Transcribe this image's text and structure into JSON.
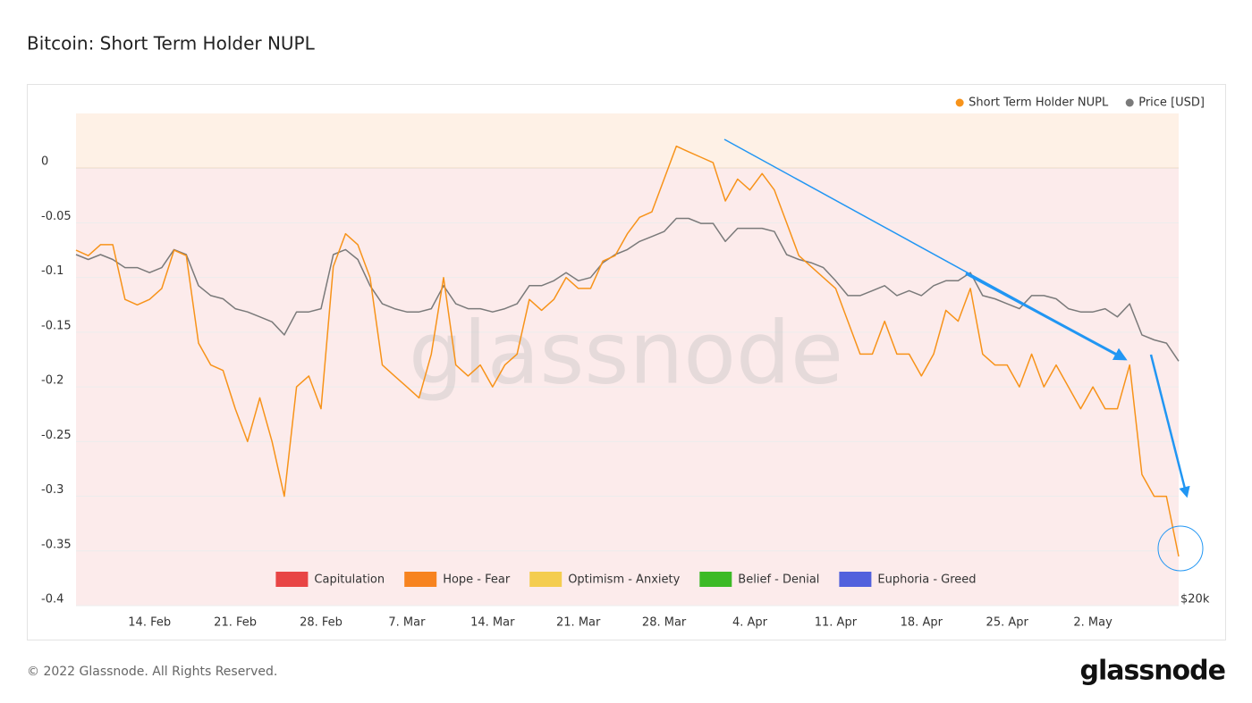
{
  "chart_data": {
    "type": "line",
    "title": "Bitcoin: Short Term Holder NUPL",
    "watermark": "glassnode",
    "categories": [
      null,
      null,
      null,
      null,
      null,
      null,
      "14. Feb",
      null,
      null,
      null,
      null,
      null,
      null,
      "21. Feb",
      null,
      null,
      null,
      null,
      null,
      null,
      "28. Feb",
      null,
      null,
      null,
      null,
      null,
      null,
      "7. Mar",
      null,
      null,
      null,
      null,
      null,
      null,
      "14. Mar",
      null,
      null,
      null,
      null,
      null,
      null,
      "21. Mar",
      null,
      null,
      null,
      null,
      null,
      null,
      "28. Mar",
      null,
      null,
      null,
      null,
      null,
      null,
      "4. Apr",
      null,
      null,
      null,
      null,
      null,
      null,
      "11. Apr",
      null,
      null,
      null,
      null,
      null,
      null,
      "18. Apr",
      null,
      null,
      null,
      null,
      null,
      null,
      "25. Apr",
      null,
      null,
      null,
      null,
      null,
      null,
      "2. May",
      null,
      null,
      null,
      null,
      null,
      null,
      null
    ],
    "series": [
      {
        "name": "Short Term Holder NUPL",
        "color": "#f7931a",
        "values": [
          -0.075,
          -0.08,
          -0.07,
          -0.07,
          -0.12,
          -0.125,
          -0.12,
          -0.11,
          -0.075,
          -0.08,
          -0.16,
          -0.18,
          -0.185,
          -0.22,
          -0.25,
          -0.21,
          -0.25,
          -0.3,
          -0.2,
          -0.19,
          -0.22,
          -0.09,
          -0.06,
          -0.07,
          -0.1,
          -0.18,
          -0.19,
          -0.2,
          -0.21,
          -0.17,
          -0.1,
          -0.18,
          -0.19,
          -0.18,
          -0.2,
          -0.18,
          -0.17,
          -0.12,
          -0.13,
          -0.12,
          -0.1,
          -0.11,
          -0.11,
          -0.085,
          -0.08,
          -0.06,
          -0.045,
          -0.04,
          -0.01,
          0.02,
          0.015,
          0.01,
          0.005,
          -0.03,
          -0.01,
          -0.02,
          -0.005,
          -0.02,
          -0.05,
          -0.08,
          -0.09,
          -0.1,
          -0.11,
          -0.14,
          -0.17,
          -0.17,
          -0.14,
          -0.17,
          -0.17,
          -0.19,
          -0.17,
          -0.13,
          -0.14,
          -0.11,
          -0.17,
          -0.18,
          -0.18,
          -0.2,
          -0.17,
          -0.2,
          -0.18,
          -0.2,
          -0.22,
          -0.2,
          -0.22,
          -0.22,
          -0.18,
          -0.28,
          -0.3,
          -0.3,
          -0.355
        ]
      },
      {
        "name": "Price [USD]",
        "color": "#7a7a7a",
        "axis": "y2",
        "values": [
          41400,
          41100,
          41400,
          41100,
          40600,
          40600,
          40300,
          40600,
          41700,
          41400,
          39500,
          38900,
          38700,
          38100,
          37900,
          37600,
          37300,
          36500,
          37900,
          37900,
          38100,
          41400,
          41700,
          41100,
          39500,
          38400,
          38100,
          37900,
          37900,
          38100,
          39500,
          38400,
          38100,
          38100,
          37900,
          38100,
          38400,
          39500,
          39500,
          39800,
          40300,
          39800,
          40000,
          40900,
          41400,
          41700,
          42200,
          42500,
          42800,
          43600,
          43600,
          43300,
          43300,
          42200,
          43000,
          43000,
          43000,
          42800,
          41400,
          41100,
          40900,
          40600,
          39800,
          38900,
          38900,
          39200,
          39500,
          38900,
          39200,
          38900,
          39500,
          39800,
          39800,
          40300,
          38900,
          38700,
          38400,
          38100,
          38900,
          38900,
          38700,
          38100,
          37900,
          37900,
          38100,
          37600,
          38400,
          36500,
          36200,
          36000,
          34900
        ]
      }
    ],
    "ylim": [
      -0.4,
      0.05
    ],
    "yticks": [
      0,
      -0.05,
      -0.1,
      -0.15,
      -0.2,
      -0.25,
      -0.3,
      -0.35,
      -0.4
    ],
    "y2lim": [
      20000,
      50000
    ],
    "y2ticks": [
      {
        "value": 20000,
        "label": "$20k"
      }
    ],
    "grid": true,
    "legend": "top-right",
    "zones": [
      {
        "name": "Capitulation",
        "color": "#e84545",
        "max": 0
      },
      {
        "name": "Hope - Fear",
        "color": "#f7831f",
        "min": 0,
        "max": 0.25
      },
      {
        "name": "Optimism - Anxiety",
        "color": "#f4cd4f",
        "min": 0.25,
        "max": 0.5
      },
      {
        "name": "Belief - Denial",
        "color": "#3cba26",
        "min": 0.5,
        "max": 0.75
      },
      {
        "name": "Euphoria - Greed",
        "color": "#5161dd",
        "min": 0.75
      }
    ]
  },
  "footer": {
    "copyright": "© 2022 Glassnode. All Rights Reserved.",
    "logo": "glassnode"
  }
}
